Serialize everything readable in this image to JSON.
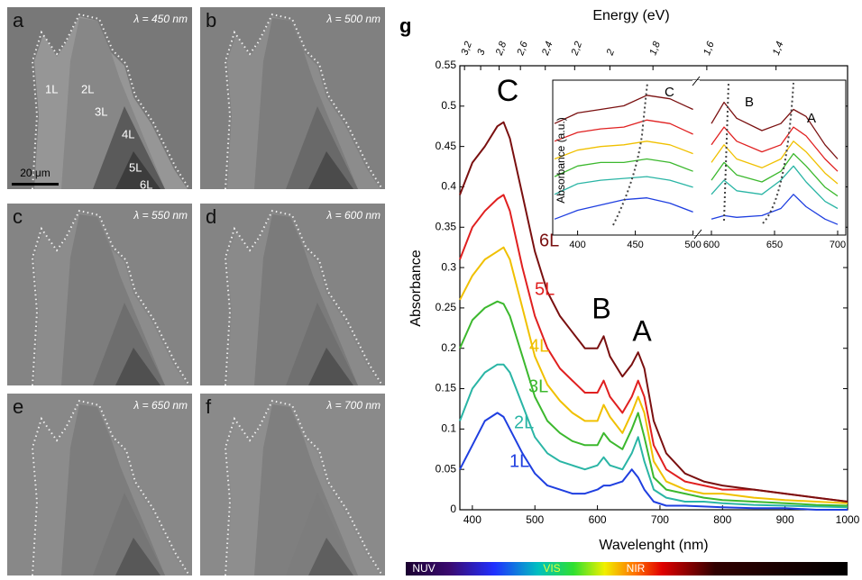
{
  "panels": [
    {
      "label": "a",
      "wavelength": "λ = 450 nm"
    },
    {
      "label": "b",
      "wavelength": "λ = 500 nm"
    },
    {
      "label": "c",
      "wavelength": "λ = 550 nm"
    },
    {
      "label": "d",
      "wavelength": "λ = 600 nm"
    },
    {
      "label": "e",
      "wavelength": "λ = 650 nm"
    },
    {
      "label": "f",
      "wavelength": "λ = 700 nm"
    }
  ],
  "panel_a_layers": [
    "1L",
    "2L",
    "3L",
    "4L",
    "5L",
    "6L"
  ],
  "scale_bar": "20 μm",
  "spectrum_bar": [
    "NUV",
    "VIS",
    "NIR"
  ],
  "chart_data": [
    {
      "type": "line",
      "panel_label": "g",
      "x2label": "Energy (eV)",
      "xlabel": "Wavelenght (nm)",
      "ylabel": "Absorbance",
      "peak_labels": [
        "C",
        "B",
        "A"
      ],
      "x": [
        380,
        400,
        420,
        440,
        450,
        460,
        480,
        500,
        520,
        540,
        560,
        580,
        600,
        610,
        620,
        640,
        655,
        665,
        675,
        690,
        710,
        740,
        770,
        800,
        850,
        900,
        950,
        1000
      ],
      "xlim": [
        380,
        1000
      ],
      "xticks": [
        400,
        500,
        600,
        700,
        800,
        900,
        1000
      ],
      "x2ticks": [
        {
          "value": 3.2,
          "label": "3,2"
        },
        {
          "value": 3,
          "label": "3"
        },
        {
          "value": 2.8,
          "label": "2,8"
        },
        {
          "value": 2.6,
          "label": "2,6"
        },
        {
          "value": 2.4,
          "label": "2,4"
        },
        {
          "value": 2.2,
          "label": "2,2"
        },
        {
          "value": 2,
          "label": "2"
        },
        {
          "value": 1.8,
          "label": "1,8"
        },
        {
          "value": 1.6,
          "label": "1,6"
        },
        {
          "value": 1.4,
          "label": "1,4"
        }
      ],
      "ylim": [
        0,
        0.55
      ],
      "yticks": [
        0,
        0.05,
        0.1,
        0.15,
        0.2,
        0.25,
        0.3,
        0.35,
        0.4,
        0.45,
        0.5,
        0.55
      ],
      "series": [
        {
          "name": "1L",
          "color": "#1f3fe0",
          "values": [
            0.05,
            0.08,
            0.11,
            0.12,
            0.115,
            0.1,
            0.07,
            0.045,
            0.03,
            0.025,
            0.02,
            0.02,
            0.025,
            0.03,
            0.03,
            0.035,
            0.05,
            0.04,
            0.025,
            0.01,
            0.005,
            0.005,
            0.004,
            0.003,
            0.002,
            0.002,
            0,
            0
          ]
        },
        {
          "name": "2L",
          "color": "#2ab5a5",
          "values": [
            0.11,
            0.15,
            0.17,
            0.18,
            0.18,
            0.17,
            0.13,
            0.09,
            0.07,
            0.06,
            0.055,
            0.05,
            0.055,
            0.065,
            0.055,
            0.05,
            0.07,
            0.09,
            0.06,
            0.025,
            0.015,
            0.01,
            0.01,
            0.008,
            0.006,
            0.005,
            0.004,
            0.003
          ]
        },
        {
          "name": "3L",
          "color": "#3cb82e",
          "values": [
            0.2,
            0.235,
            0.25,
            0.258,
            0.255,
            0.24,
            0.19,
            0.14,
            0.11,
            0.095,
            0.085,
            0.08,
            0.08,
            0.095,
            0.085,
            0.075,
            0.1,
            0.12,
            0.09,
            0.04,
            0.025,
            0.02,
            0.015,
            0.012,
            0.01,
            0.008,
            0.006,
            0.005
          ]
        },
        {
          "name": "4L",
          "color": "#f0c000",
          "values": [
            0.26,
            0.29,
            0.31,
            0.32,
            0.325,
            0.31,
            0.25,
            0.19,
            0.155,
            0.135,
            0.12,
            0.11,
            0.11,
            0.13,
            0.115,
            0.095,
            0.12,
            0.14,
            0.12,
            0.06,
            0.035,
            0.025,
            0.02,
            0.02,
            0.015,
            0.012,
            0.01,
            0.008
          ]
        },
        {
          "name": "5L",
          "color": "#e02020",
          "values": [
            0.31,
            0.35,
            0.37,
            0.385,
            0.39,
            0.37,
            0.3,
            0.24,
            0.2,
            0.175,
            0.16,
            0.145,
            0.145,
            0.16,
            0.14,
            0.12,
            0.14,
            0.16,
            0.14,
            0.08,
            0.05,
            0.035,
            0.03,
            0.025,
            0.025,
            0.02,
            0.015,
            0.01
          ]
        },
        {
          "name": "6L",
          "color": "#7a1010",
          "values": [
            0.39,
            0.43,
            0.45,
            0.475,
            0.48,
            0.46,
            0.39,
            0.32,
            0.27,
            0.24,
            0.22,
            0.2,
            0.2,
            0.215,
            0.19,
            0.165,
            0.18,
            0.195,
            0.175,
            0.11,
            0.07,
            0.045,
            0.035,
            0.03,
            0.025,
            0.02,
            0.015,
            0.01
          ]
        }
      ]
    },
    {
      "type": "line",
      "ylabel": "Absorbance (a.u.)",
      "peak_labels": [
        "C",
        "B",
        "A"
      ],
      "x": [
        380,
        400,
        420,
        440,
        460,
        480,
        500,
        600,
        610,
        620,
        640,
        655,
        665,
        675,
        690,
        700
      ],
      "xlim": [
        380,
        705
      ],
      "xbreak": [
        505,
        595
      ],
      "xticks": [
        400,
        450,
        500,
        600,
        650,
        700
      ],
      "ylim": [
        0,
        0.85
      ],
      "series": [
        {
          "color": "#1f3fe0",
          "values": [
            0.08,
            0.13,
            0.16,
            0.19,
            0.2,
            0.17,
            0.12,
            0.08,
            0.1,
            0.09,
            0.1,
            0.14,
            0.22,
            0.15,
            0.08,
            0.05
          ]
        },
        {
          "color": "#2ab5a5",
          "values": [
            0.22,
            0.28,
            0.3,
            0.31,
            0.32,
            0.3,
            0.26,
            0.22,
            0.3,
            0.24,
            0.22,
            0.3,
            0.38,
            0.29,
            0.18,
            0.14
          ]
        },
        {
          "color": "#3cb82e",
          "values": [
            0.32,
            0.38,
            0.4,
            0.4,
            0.42,
            0.4,
            0.35,
            0.3,
            0.4,
            0.33,
            0.29,
            0.35,
            0.45,
            0.38,
            0.26,
            0.21
          ]
        },
        {
          "color": "#f0c000",
          "values": [
            0.42,
            0.47,
            0.49,
            0.5,
            0.52,
            0.5,
            0.45,
            0.4,
            0.5,
            0.42,
            0.37,
            0.42,
            0.52,
            0.46,
            0.34,
            0.28
          ]
        },
        {
          "color": "#e02020",
          "values": [
            0.52,
            0.57,
            0.59,
            0.6,
            0.64,
            0.62,
            0.56,
            0.5,
            0.6,
            0.52,
            0.46,
            0.5,
            0.6,
            0.55,
            0.42,
            0.35
          ]
        },
        {
          "color": "#7a1010",
          "values": [
            0.62,
            0.68,
            0.7,
            0.72,
            0.78,
            0.76,
            0.7,
            0.62,
            0.74,
            0.65,
            0.58,
            0.62,
            0.7,
            0.66,
            0.5,
            0.42
          ]
        }
      ]
    }
  ]
}
